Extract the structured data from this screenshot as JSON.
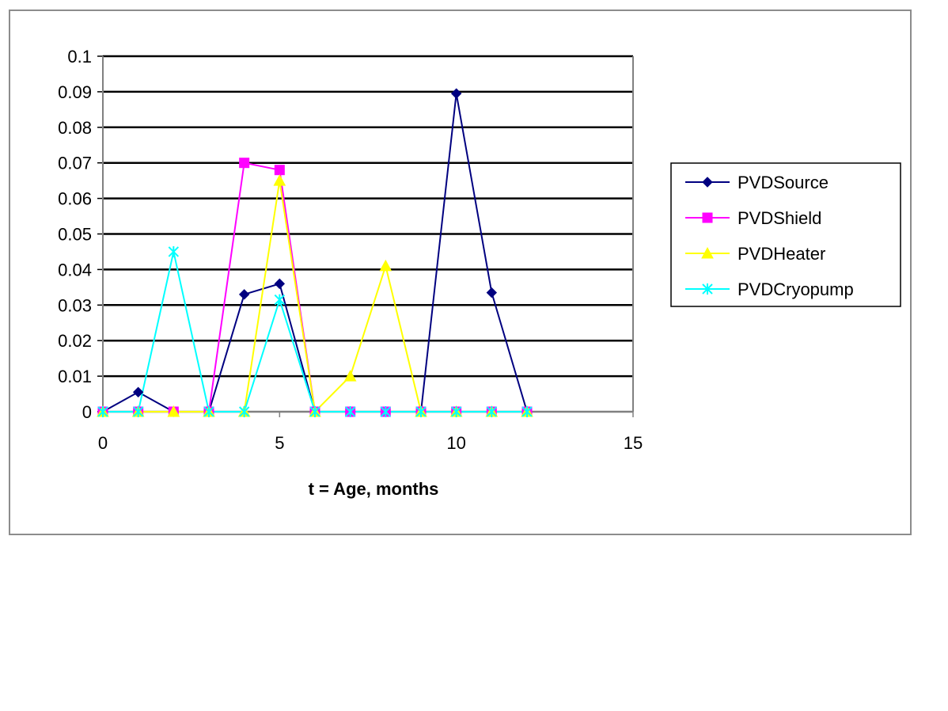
{
  "chart_data": {
    "type": "line",
    "title": "",
    "xlabel": "t = Age, months",
    "ylabel": "",
    "xlim": [
      0,
      15
    ],
    "ylim": [
      0,
      0.1
    ],
    "xticks": [
      0,
      5,
      10,
      15
    ],
    "xtick_labels": [
      "0",
      "5",
      "10",
      "15"
    ],
    "yticks": [
      0,
      0.01,
      0.02,
      0.03,
      0.04,
      0.05,
      0.06,
      0.07,
      0.08,
      0.09,
      0.1
    ],
    "ytick_labels": [
      "0",
      "0.01",
      "0.02",
      "0.03",
      "0.04",
      "0.05",
      "0.06",
      "0.07",
      "0.08",
      "0.09",
      "0.1"
    ],
    "grid": "horizontal",
    "legend_position": "right",
    "x": [
      0,
      1,
      2,
      3,
      4,
      5,
      6,
      7,
      8,
      9,
      10,
      11,
      12
    ],
    "series": [
      {
        "name": "PVDSource",
        "color": "#000080",
        "marker": "diamond",
        "values": [
          0,
          0.0055,
          0,
          0,
          0.033,
          0.036,
          0,
          0,
          0,
          0,
          0.0895,
          0.0335,
          0
        ]
      },
      {
        "name": "PVDShield",
        "color": "#ff00ff",
        "marker": "square",
        "values": [
          0,
          0,
          0,
          0,
          0.07,
          0.068,
          0,
          0,
          0,
          0,
          0,
          0,
          0
        ]
      },
      {
        "name": "PVDHeater",
        "color": "#ffff00",
        "marker": "triangle",
        "values": [
          0,
          0,
          0,
          0,
          0,
          0.065,
          0,
          0.01,
          0.041,
          0,
          0,
          0,
          0
        ]
      },
      {
        "name": "PVDCryopump",
        "color": "#00ffff",
        "marker": "x",
        "values": [
          0,
          0,
          0.045,
          0,
          0,
          0.0315,
          0,
          0,
          0,
          0,
          0,
          0,
          0
        ]
      }
    ]
  }
}
